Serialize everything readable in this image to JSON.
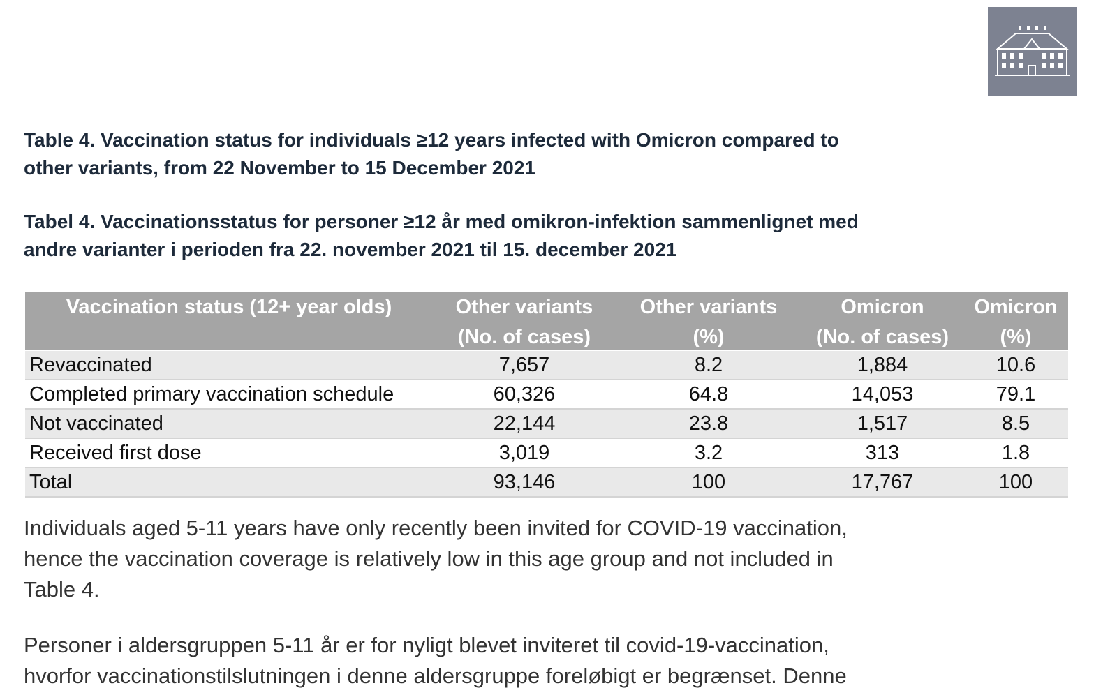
{
  "title_en": [
    "Table 4. Vaccination status for individuals ≥12 years infected with Omicron compared to",
    "other variants, from 22 November to 15 December 2021"
  ],
  "title_da": [
    "Tabel 4. Vaccinationsstatus for personer ≥12 år med omikron-infektion sammenlignet med",
    "andre varianter i perioden fra 22. november 2021 til 15. december 2021"
  ],
  "table": {
    "header": [
      [
        "Vaccination status (12+ year olds)"
      ],
      [
        "Other variants",
        "(No. of cases)"
      ],
      [
        "Other variants",
        "(%)"
      ],
      [
        "Omicron",
        "(No. of cases)"
      ],
      [
        "Omicron",
        "(%)"
      ]
    ],
    "rows": [
      [
        "Revaccinated",
        "7,657",
        "8.2",
        "1,884",
        "10.6"
      ],
      [
        "Completed primary vaccination schedule",
        "60,326",
        "64.8",
        "14,053",
        "79.1"
      ],
      [
        "Not vaccinated",
        "22,144",
        "23.8",
        "1,517",
        "8.5"
      ],
      [
        "Received first dose",
        "3,019",
        "3.2",
        "313",
        "1.8"
      ],
      [
        "Total",
        "93,146",
        "100",
        "17,767",
        "100"
      ]
    ]
  },
  "paragraphs": [
    [
      "Individuals aged 5-11 years have only recently been invited for COVID-19 vaccination,",
      "hence the vaccination coverage is relatively low in this age group and not included in",
      "Table 4."
    ],
    [
      "Personer i aldersgruppen 5-11 år er for nyligt blevet inviteret til covid-19-vaccination,",
      "hvorfor vaccinationstilslutningen i denne aldersgruppe foreløbigt er begrænset. Denne"
    ]
  ]
}
